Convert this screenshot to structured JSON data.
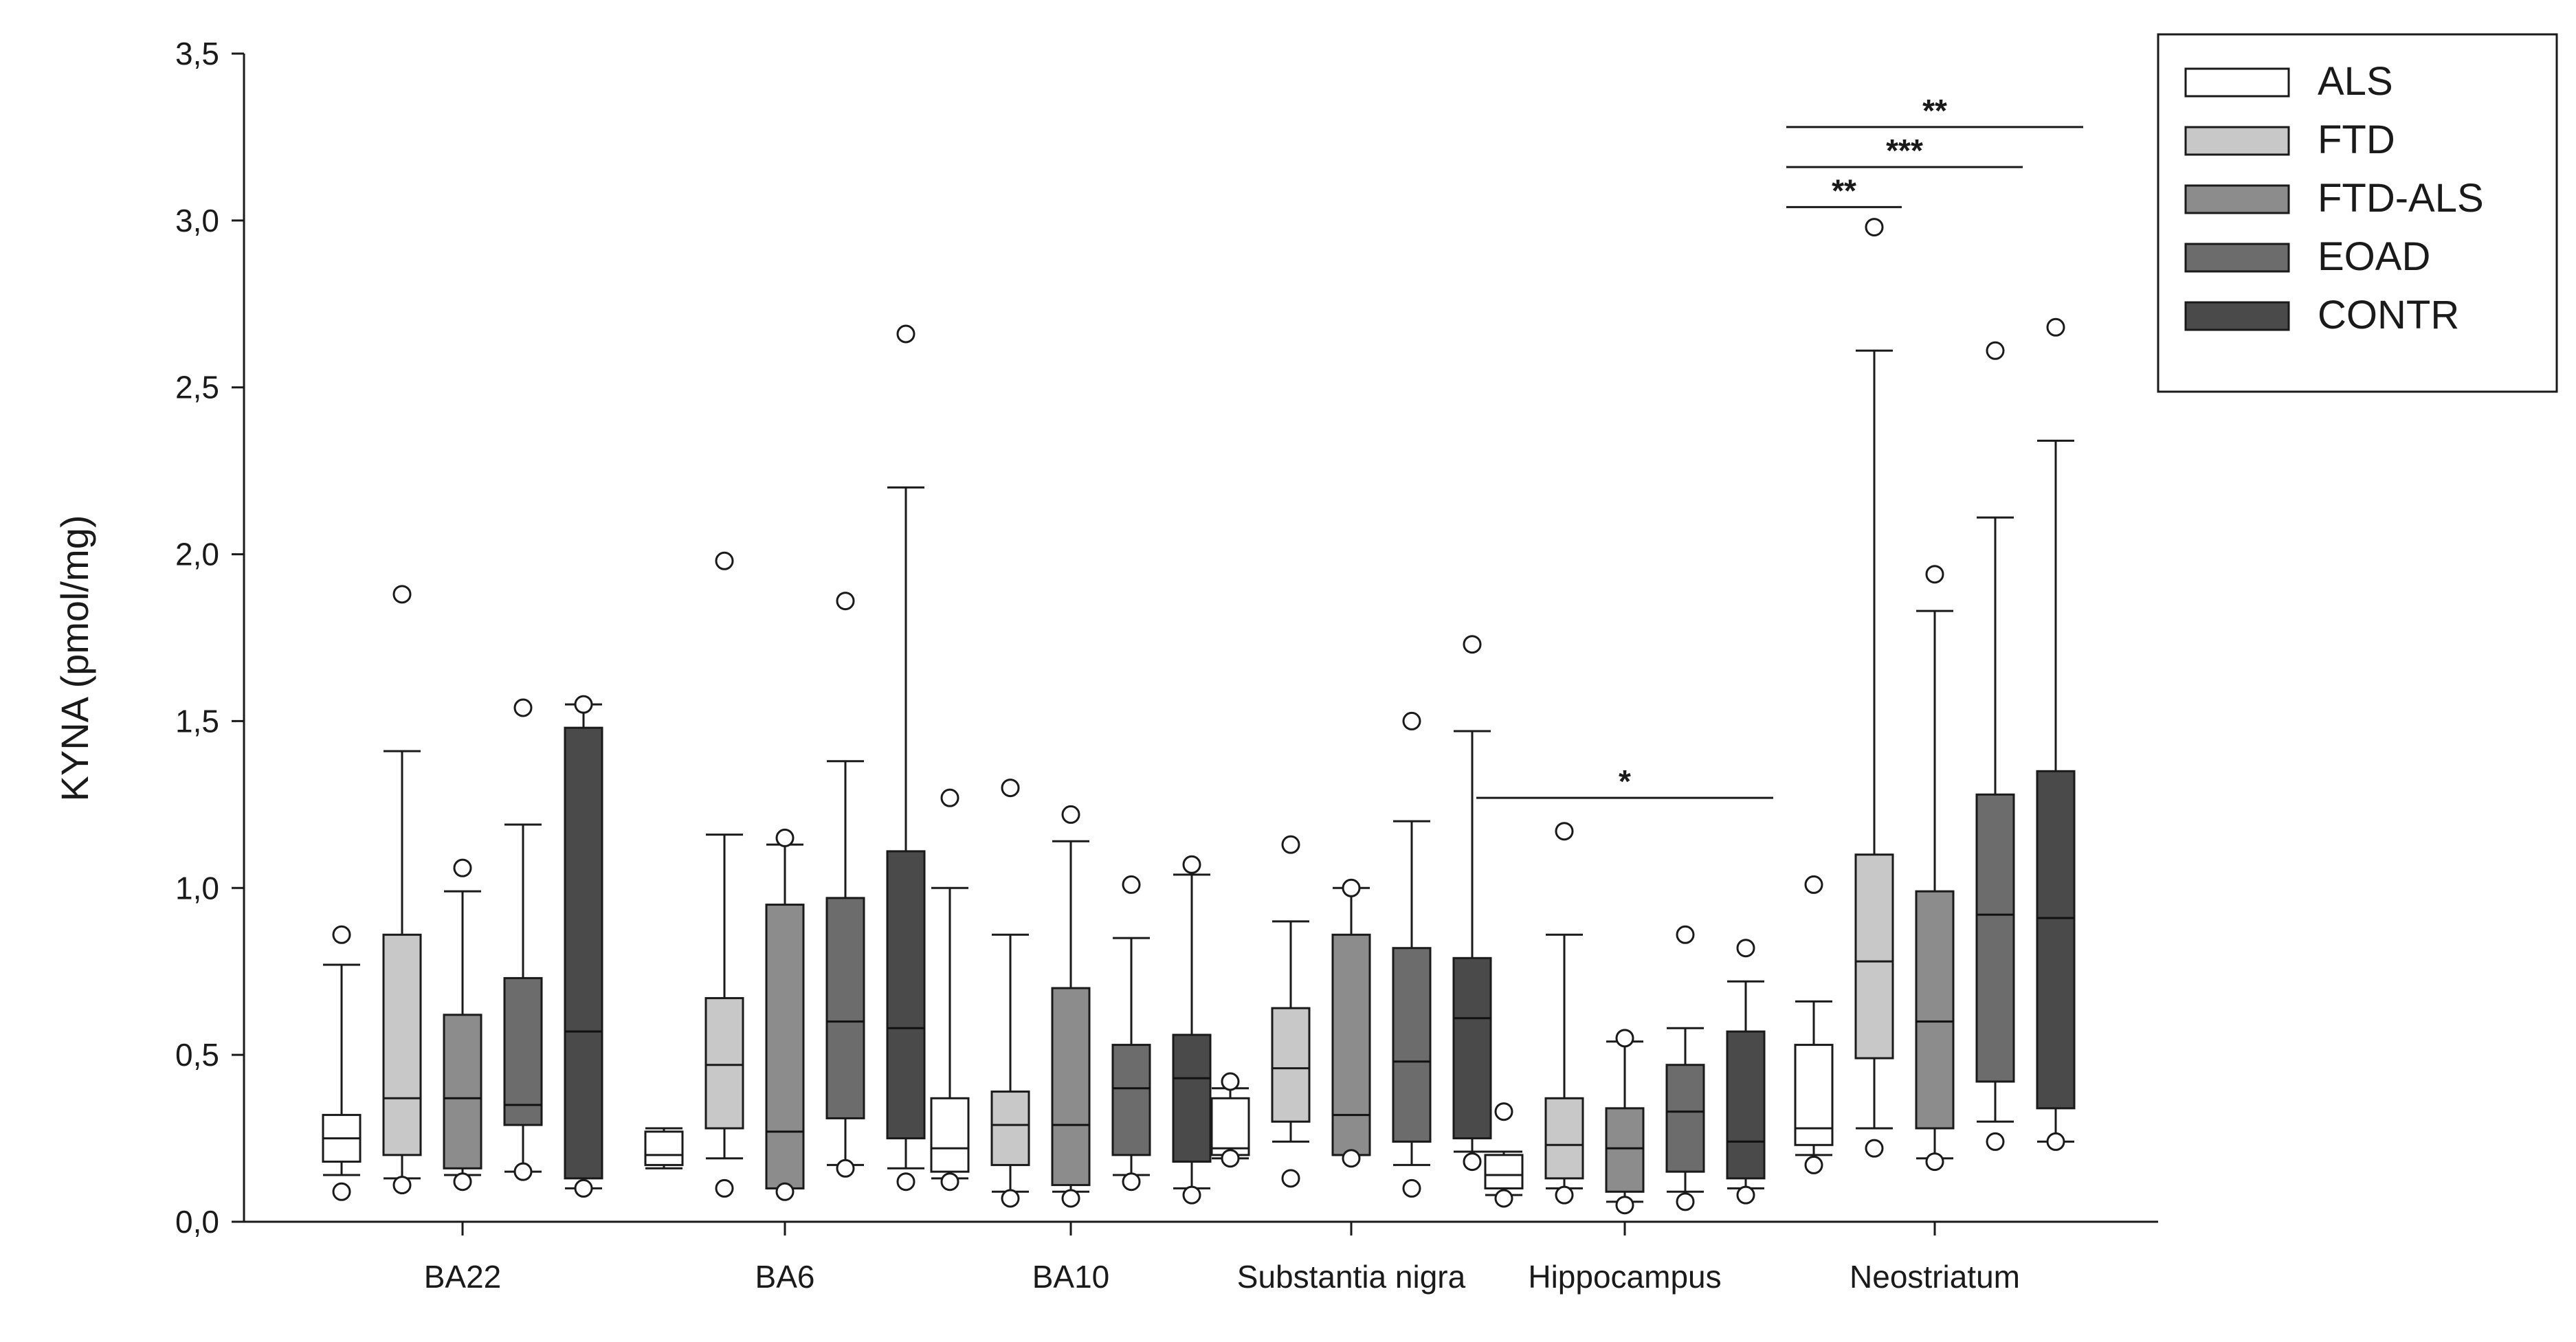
{
  "chart_data": {
    "type": "box",
    "title": "",
    "xlabel": "",
    "ylabel": "KYNA (pmol/mg)",
    "ylim": [
      0,
      3.5
    ],
    "yticks": [
      "0,0",
      "0,5",
      "1,0",
      "1,5",
      "2,0",
      "2,5",
      "3,0",
      "3,5"
    ],
    "ytick_values": [
      0,
      0.5,
      1.0,
      1.5,
      2.0,
      2.5,
      3.0,
      3.5
    ],
    "grid": false,
    "legend_position": "top-right",
    "categories": [
      "BA22",
      "BA6",
      "BA10",
      "Substantia nigra",
      "Hippocampus",
      "Neostriatum"
    ],
    "series": [
      {
        "name": "ALS",
        "color": "#ffffff",
        "boxes": [
          {
            "whislo": 0.14,
            "q1": 0.18,
            "med": 0.25,
            "q3": 0.32,
            "whishi": 0.77,
            "fliers": [
              0.09,
              0.86
            ]
          },
          {
            "whislo": 0.16,
            "q1": 0.17,
            "med": 0.2,
            "q3": 0.27,
            "whishi": 0.28,
            "fliers": []
          },
          {
            "whislo": 0.13,
            "q1": 0.15,
            "med": 0.22,
            "q3": 0.37,
            "whishi": 1.0,
            "fliers": [
              0.12,
              1.27
            ]
          },
          {
            "whislo": 0.19,
            "q1": 0.2,
            "med": 0.22,
            "q3": 0.37,
            "whishi": 0.4,
            "fliers": [
              0.19,
              0.42
            ]
          },
          {
            "whislo": 0.08,
            "q1": 0.1,
            "med": 0.14,
            "q3": 0.2,
            "whishi": 0.21,
            "fliers": [
              0.07,
              0.33
            ]
          },
          {
            "whislo": 0.2,
            "q1": 0.23,
            "med": 0.28,
            "q3": 0.53,
            "whishi": 0.66,
            "fliers": [
              0.17,
              1.01
            ]
          }
        ]
      },
      {
        "name": "FTD",
        "color": "#c8c8c8",
        "boxes": [
          {
            "whislo": 0.13,
            "q1": 0.2,
            "med": 0.37,
            "q3": 0.86,
            "whishi": 1.41,
            "fliers": [
              0.11,
              1.88
            ]
          },
          {
            "whislo": 0.19,
            "q1": 0.28,
            "med": 0.47,
            "q3": 0.67,
            "whishi": 1.16,
            "fliers": [
              0.1,
              1.98
            ]
          },
          {
            "whislo": 0.09,
            "q1": 0.17,
            "med": 0.29,
            "q3": 0.39,
            "whishi": 0.86,
            "fliers": [
              0.07,
              1.3
            ]
          },
          {
            "whislo": 0.24,
            "q1": 0.3,
            "med": 0.46,
            "q3": 0.64,
            "whishi": 0.9,
            "fliers": [
              0.13,
              1.13
            ]
          },
          {
            "whislo": 0.1,
            "q1": 0.13,
            "med": 0.23,
            "q3": 0.37,
            "whishi": 0.86,
            "fliers": [
              0.08,
              1.17
            ]
          },
          {
            "whislo": 0.28,
            "q1": 0.49,
            "med": 0.78,
            "q3": 1.1,
            "whishi": 2.61,
            "fliers": [
              0.22,
              2.98
            ]
          }
        ]
      },
      {
        "name": "FTD-ALS",
        "color": "#8c8c8c",
        "boxes": [
          {
            "whislo": 0.14,
            "q1": 0.16,
            "med": 0.37,
            "q3": 0.62,
            "whishi": 0.99,
            "fliers": [
              0.12,
              1.06
            ]
          },
          {
            "whislo": 0.1,
            "q1": 0.1,
            "med": 0.27,
            "q3": 0.95,
            "whishi": 1.13,
            "fliers": [
              0.09,
              1.15
            ]
          },
          {
            "whislo": 0.09,
            "q1": 0.11,
            "med": 0.29,
            "q3": 0.7,
            "whishi": 1.14,
            "fliers": [
              0.07,
              1.22
            ]
          },
          {
            "whislo": 0.2,
            "q1": 0.2,
            "med": 0.32,
            "q3": 0.86,
            "whishi": 1.0,
            "fliers": [
              0.19,
              1.0
            ]
          },
          {
            "whislo": 0.06,
            "q1": 0.09,
            "med": 0.22,
            "q3": 0.34,
            "whishi": 0.54,
            "fliers": [
              0.05,
              0.55
            ]
          },
          {
            "whislo": 0.19,
            "q1": 0.28,
            "med": 0.6,
            "q3": 0.99,
            "whishi": 1.83,
            "fliers": [
              0.18,
              1.94
            ]
          }
        ]
      },
      {
        "name": "EOAD",
        "color": "#6c6c6c",
        "boxes": [
          {
            "whislo": 0.15,
            "q1": 0.29,
            "med": 0.35,
            "q3": 0.73,
            "whishi": 1.19,
            "fliers": [
              0.15,
              1.54
            ]
          },
          {
            "whislo": 0.17,
            "q1": 0.31,
            "med": 0.6,
            "q3": 0.97,
            "whishi": 1.38,
            "fliers": [
              0.16,
              1.86
            ]
          },
          {
            "whislo": 0.14,
            "q1": 0.2,
            "med": 0.4,
            "q3": 0.53,
            "whishi": 0.85,
            "fliers": [
              0.12,
              1.01
            ]
          },
          {
            "whislo": 0.17,
            "q1": 0.24,
            "med": 0.48,
            "q3": 0.82,
            "whishi": 1.2,
            "fliers": [
              0.1,
              1.5
            ]
          },
          {
            "whislo": 0.09,
            "q1": 0.15,
            "med": 0.33,
            "q3": 0.47,
            "whishi": 0.58,
            "fliers": [
              0.06,
              0.86
            ]
          },
          {
            "whislo": 0.3,
            "q1": 0.42,
            "med": 0.92,
            "q3": 1.28,
            "whishi": 2.11,
            "fliers": [
              0.24,
              2.61
            ]
          }
        ]
      },
      {
        "name": "CONTR",
        "color": "#4a4a4a",
        "boxes": [
          {
            "whislo": 0.1,
            "q1": 0.13,
            "med": 0.57,
            "q3": 1.48,
            "whishi": 1.55,
            "fliers": [
              0.1,
              1.55
            ]
          },
          {
            "whislo": 0.16,
            "q1": 0.25,
            "med": 0.58,
            "q3": 1.11,
            "whishi": 2.2,
            "fliers": [
              0.12,
              2.66
            ]
          },
          {
            "whislo": 0.1,
            "q1": 0.18,
            "med": 0.43,
            "q3": 0.56,
            "whishi": 1.04,
            "fliers": [
              0.08,
              1.07
            ]
          },
          {
            "whislo": 0.21,
            "q1": 0.25,
            "med": 0.61,
            "q3": 0.79,
            "whishi": 1.47,
            "fliers": [
              0.18,
              1.73
            ]
          },
          {
            "whislo": 0.1,
            "q1": 0.13,
            "med": 0.24,
            "q3": 0.57,
            "whishi": 0.72,
            "fliers": [
              0.08,
              0.82
            ]
          },
          {
            "whislo": 0.24,
            "q1": 0.34,
            "med": 0.91,
            "q3": 1.35,
            "whishi": 2.34,
            "fliers": [
              0.24,
              2.68
            ]
          }
        ]
      }
    ],
    "annotations": [
      {
        "text": "*",
        "category": 4,
        "from_series": 0,
        "to_series": 4,
        "y": 1.27
      },
      {
        "text": "**",
        "category": 5,
        "from_series": 0,
        "to_series": 1,
        "y": 3.04
      },
      {
        "text": "***",
        "category": 5,
        "from_series": 0,
        "to_series": 3,
        "y": 3.16
      },
      {
        "text": "**",
        "category": 5,
        "from_series": 0,
        "to_series": 4,
        "y": 3.28
      }
    ]
  }
}
